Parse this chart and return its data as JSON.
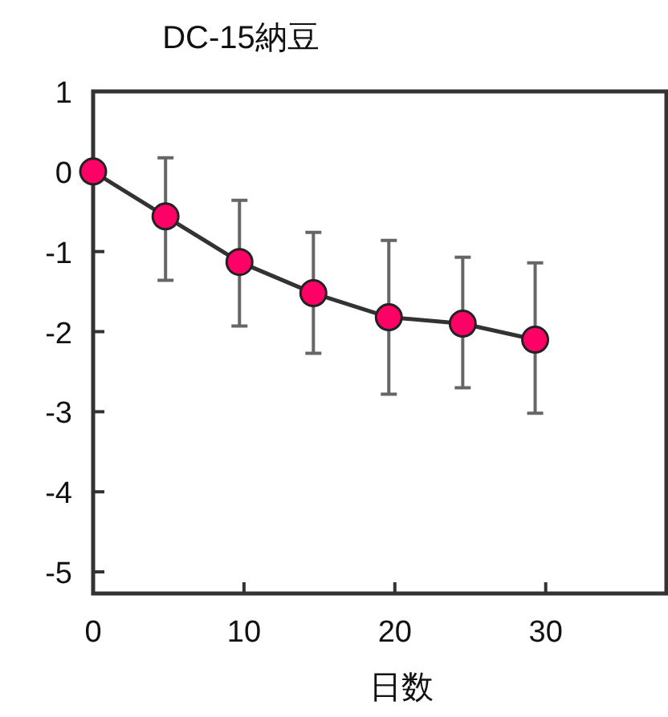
{
  "chart_data": {
    "type": "line",
    "title": "DC-15納豆",
    "xlabel": "日数",
    "x": [
      0,
      4.8,
      9.7,
      14.6,
      19.6,
      24.5,
      29.3
    ],
    "series": [
      {
        "color": "#ff0066",
        "values": [
          0,
          -0.56,
          -1.13,
          -1.52,
          -1.82,
          -1.9,
          -2.1
        ],
        "errors": [
          null,
          [
            -1.36,
            0.17
          ],
          [
            -1.93,
            -0.36
          ],
          [
            -2.27,
            -0.76
          ],
          [
            -2.78,
            -0.86
          ],
          [
            -2.7,
            -1.07
          ],
          [
            -3.02,
            -1.14
          ]
        ]
      }
    ],
    "xlim": [
      0,
      38
    ],
    "ylim": [
      -5.27,
      1
    ],
    "xticks": [
      0,
      10,
      20,
      30
    ],
    "yticks": [
      1,
      0,
      -1,
      -2,
      -3,
      -4,
      -5
    ],
    "grid": false,
    "marker": "circle",
    "line_style": "solid"
  }
}
